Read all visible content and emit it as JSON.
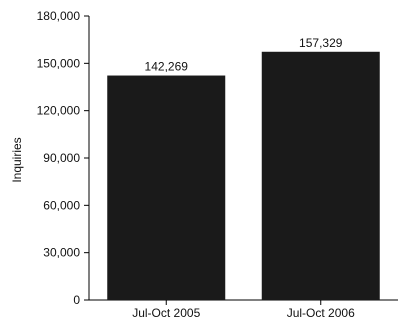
{
  "chart_data": {
    "type": "bar",
    "title": "",
    "xlabel": "",
    "ylabel": "Inquiries",
    "categories": [
      "Jul-Oct 2005",
      "Jul-Oct 2006"
    ],
    "values": [
      142269,
      157329
    ],
    "data_labels": [
      "142,269",
      "157,329"
    ],
    "ylim": [
      0,
      180000
    ],
    "yticks": [
      0,
      30000,
      60000,
      90000,
      120000,
      150000,
      180000
    ],
    "ytick_labels": [
      "0",
      "30,000",
      "60,000",
      "90,000",
      "120,000",
      "150,000",
      "180,000"
    ],
    "grid": false,
    "bar_color": "#1a1a1a"
  }
}
